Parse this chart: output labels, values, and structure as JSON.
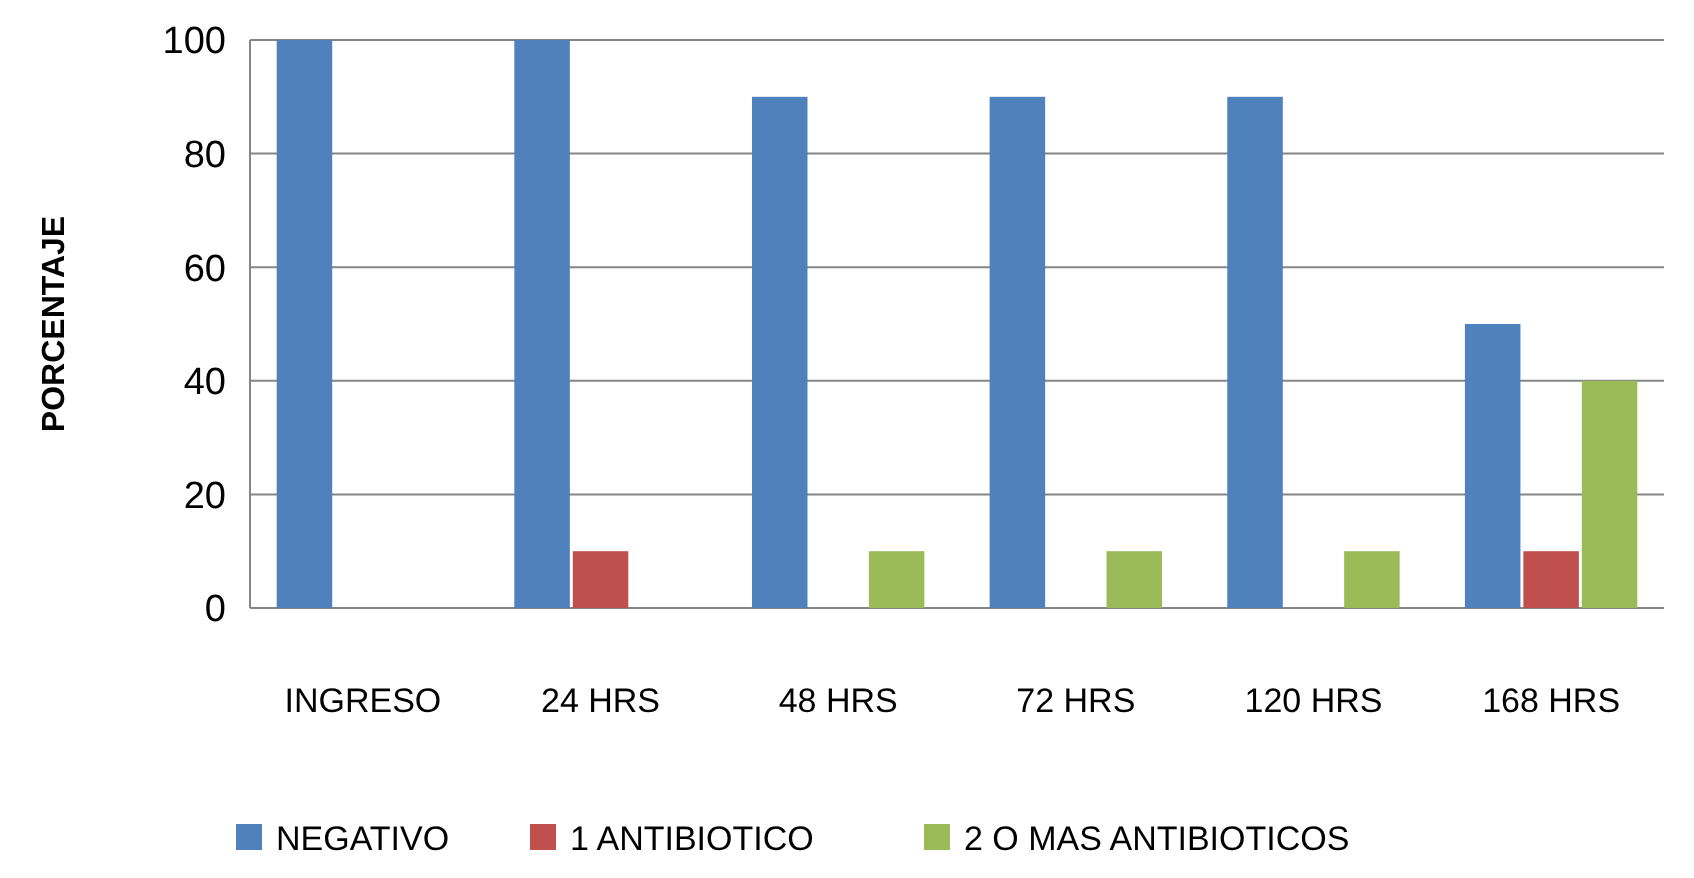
{
  "chart_data": {
    "type": "bar",
    "ylabel": "PORCENTAJE",
    "categories": [
      "INGRESO",
      "24 HRS",
      "48 HRS",
      "72 HRS",
      "120 HRS",
      "168 HRS"
    ],
    "series": [
      {
        "name": "NEGATIVO",
        "color": "#4f81bd",
        "values": [
          100,
          100,
          90,
          90,
          90,
          50
        ]
      },
      {
        "name": "1 ANTIBIOTICO",
        "color": "#c0504d",
        "values": [
          0,
          10,
          0,
          0,
          0,
          10
        ]
      },
      {
        "name": "2 O MAS ANTIBIOTICOS",
        "color": "#9bbb59",
        "values": [
          0,
          0,
          10,
          10,
          10,
          40
        ]
      }
    ],
    "ylim": [
      0,
      100
    ],
    "yticks": [
      0,
      20,
      40,
      60,
      80,
      100
    ],
    "grid": "y",
    "legend": "bottom"
  }
}
